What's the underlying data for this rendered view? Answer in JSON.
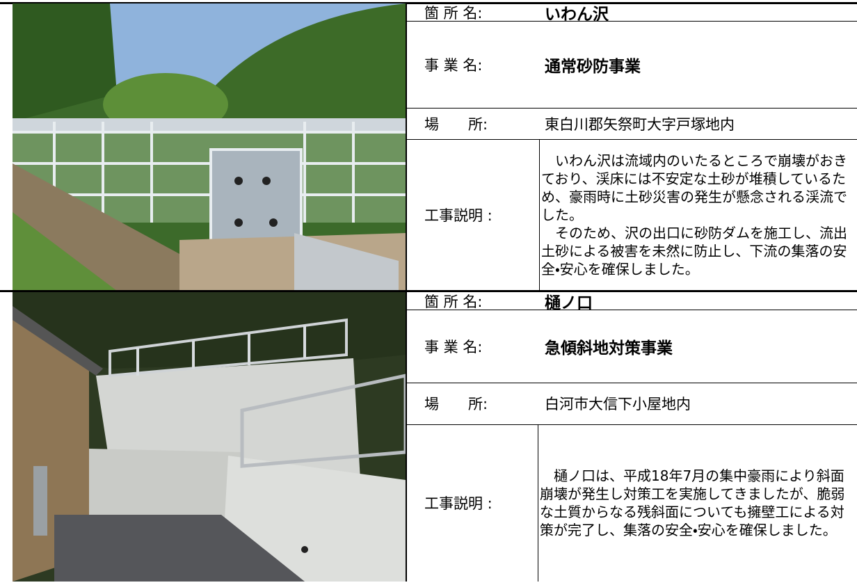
{
  "projects": [
    {
      "location_label": "箇 所 名:",
      "location": "いわん沢",
      "business_label": "事 業 名:",
      "business": "通常砂防事業",
      "place_label": "場　　所:",
      "place": "東白川郡矢祭町大字戸塚地内",
      "description_label": "工事説明 :",
      "description": [
        "　いわん沢は流域内のいたるところで崩壊がおきており、渓床には不安定な土砂が堆積しているため、豪雨時に土砂災害の発生が懸念される渓流でした。",
        "　そのため、沢の出口に砂防ダムを施工し、流出土砂による被害を未然に防止し、下流の集落の安全・安心を確保しました。"
      ]
    },
    {
      "location_label": "箇 所 名:",
      "location": "樋ノ口",
      "business_label": "事 業 名:",
      "business": "急傾斜地対策事業",
      "place_label": "場　　所:",
      "place": "白河市大信下小屋地内",
      "description_label": "工事説明 :",
      "description": [
        "　樋ノ口は、平成18年7月の集中豪雨により斜面崩壊が発生し対策工を実施してきましたが、脆弱な土質からなる残斜面についても擁壁工による対策が完了し、集落の安全・安心を確保しました。"
      ]
    }
  ]
}
